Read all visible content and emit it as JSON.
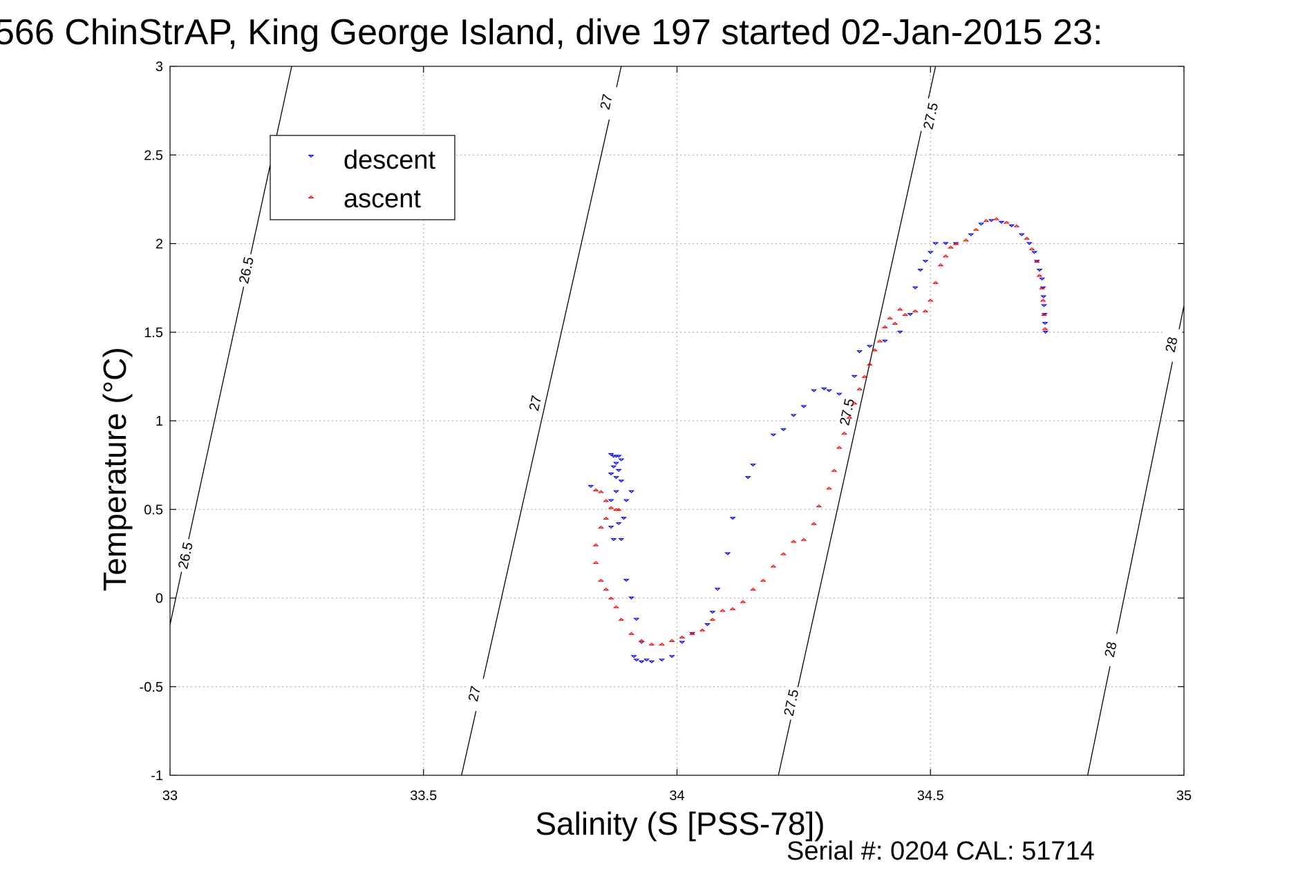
{
  "chart_data": {
    "type": "scatter",
    "title": "566 ChinStrAP, King George Island, dive 197 started 02-Jan-2015 23:",
    "xlabel": "Salinity (S [PSS-78])",
    "ylabel": "Temperature (°C)",
    "xlim": [
      33,
      35
    ],
    "ylim": [
      -1,
      3
    ],
    "x_ticks": [
      "33",
      "33.5",
      "34",
      "34.5",
      "35"
    ],
    "y_ticks": [
      "-1",
      "-0.5",
      "0",
      "0.5",
      "1",
      "1.5",
      "2",
      "2.5",
      "3"
    ],
    "grid": true,
    "legend_position": "top-left",
    "footer": "Serial #: 0204  CAL: 51714",
    "density_contours": [
      {
        "label": "26.5",
        "points": [
          [
            33.0,
            -0.15
          ],
          [
            33.24,
            3.0
          ]
        ],
        "label_positions": [
          [
            33.03,
            0.24
          ],
          [
            33.15,
            1.85
          ]
        ]
      },
      {
        "label": "27",
        "points": [
          [
            33.575,
            -1.0
          ],
          [
            33.89,
            3.0
          ]
        ],
        "label_positions": [
          [
            33.6,
            -0.54
          ],
          [
            33.72,
            1.1
          ],
          [
            33.86,
            2.8
          ]
        ]
      },
      {
        "label": "27.5",
        "points": [
          [
            34.2,
            -1.0
          ],
          [
            34.51,
            3.0
          ]
        ],
        "label_positions": [
          [
            34.225,
            -0.59
          ],
          [
            34.335,
            1.05
          ],
          [
            34.5,
            2.72
          ]
        ]
      },
      {
        "label": "28",
        "points": [
          [
            34.81,
            -1.0
          ],
          [
            35.0,
            1.65
          ]
        ],
        "label_positions": [
          [
            34.855,
            -0.29
          ],
          [
            34.975,
            1.43
          ]
        ]
      }
    ],
    "series": [
      {
        "name": "descent",
        "color": "#0000ff",
        "marker": "triangle-down",
        "points": [
          [
            33.87,
            0.81
          ],
          [
            33.875,
            0.8
          ],
          [
            33.88,
            0.8
          ],
          [
            33.885,
            0.8
          ],
          [
            33.89,
            0.78
          ],
          [
            33.88,
            0.76
          ],
          [
            33.875,
            0.74
          ],
          [
            33.885,
            0.72
          ],
          [
            33.87,
            0.7
          ],
          [
            33.88,
            0.68
          ],
          [
            33.89,
            0.66
          ],
          [
            33.88,
            0.6
          ],
          [
            33.87,
            0.55
          ],
          [
            33.9,
            0.55
          ],
          [
            33.895,
            0.45
          ],
          [
            33.885,
            0.42
          ],
          [
            33.875,
            0.33
          ],
          [
            33.89,
            0.33
          ],
          [
            33.87,
            0.4
          ],
          [
            33.83,
            0.63
          ],
          [
            33.91,
            0.6
          ],
          [
            33.9,
            0.1
          ],
          [
            33.91,
            0.0
          ],
          [
            33.92,
            -0.12
          ],
          [
            33.93,
            -0.25
          ],
          [
            33.915,
            -0.33
          ],
          [
            33.92,
            -0.35
          ],
          [
            33.93,
            -0.36
          ],
          [
            33.94,
            -0.35
          ],
          [
            33.95,
            -0.36
          ],
          [
            33.97,
            -0.35
          ],
          [
            33.99,
            -0.33
          ],
          [
            34.01,
            -0.25
          ],
          [
            34.03,
            -0.2
          ],
          [
            34.06,
            -0.15
          ],
          [
            34.07,
            -0.08
          ],
          [
            34.08,
            0.05
          ],
          [
            34.1,
            0.25
          ],
          [
            34.11,
            0.45
          ],
          [
            34.14,
            0.68
          ],
          [
            34.15,
            0.75
          ],
          [
            34.19,
            0.92
          ],
          [
            34.21,
            0.95
          ],
          [
            34.23,
            1.03
          ],
          [
            34.25,
            1.08
          ],
          [
            34.27,
            1.17
          ],
          [
            34.29,
            1.18
          ],
          [
            34.3,
            1.17
          ],
          [
            34.32,
            1.15
          ],
          [
            34.35,
            1.25
          ],
          [
            34.36,
            1.39
          ],
          [
            34.38,
            1.42
          ],
          [
            34.41,
            1.45
          ],
          [
            34.44,
            1.5
          ],
          [
            34.46,
            1.6
          ],
          [
            34.47,
            1.75
          ],
          [
            34.48,
            1.85
          ],
          [
            34.49,
            1.9
          ],
          [
            34.5,
            1.95
          ],
          [
            34.51,
            2.0
          ],
          [
            34.53,
            2.0
          ],
          [
            34.55,
            2.0
          ],
          [
            34.58,
            2.05
          ],
          [
            34.6,
            2.11
          ],
          [
            34.62,
            2.13
          ],
          [
            34.64,
            2.12
          ],
          [
            34.66,
            2.1
          ],
          [
            34.68,
            2.05
          ],
          [
            34.695,
            2.0
          ],
          [
            34.705,
            1.95
          ],
          [
            34.71,
            1.9
          ],
          [
            34.715,
            1.85
          ],
          [
            34.72,
            1.8
          ],
          [
            34.722,
            1.75
          ],
          [
            34.723,
            1.7
          ],
          [
            34.724,
            1.65
          ],
          [
            34.725,
            1.6
          ],
          [
            34.726,
            1.55
          ],
          [
            34.727,
            1.5
          ]
        ]
      },
      {
        "name": "ascent",
        "color": "#ff0000",
        "marker": "triangle-up",
        "points": [
          [
            33.84,
            0.61
          ],
          [
            33.85,
            0.6
          ],
          [
            33.86,
            0.55
          ],
          [
            33.87,
            0.51
          ],
          [
            33.88,
            0.5
          ],
          [
            33.885,
            0.5
          ],
          [
            33.86,
            0.45
          ],
          [
            33.85,
            0.4
          ],
          [
            33.84,
            0.3
          ],
          [
            33.84,
            0.2
          ],
          [
            33.85,
            0.1
          ],
          [
            33.86,
            0.05
          ],
          [
            33.87,
            0.0
          ],
          [
            33.88,
            -0.05
          ],
          [
            33.89,
            -0.12
          ],
          [
            33.91,
            -0.2
          ],
          [
            33.93,
            -0.24
          ],
          [
            33.95,
            -0.26
          ],
          [
            33.97,
            -0.26
          ],
          [
            33.99,
            -0.24
          ],
          [
            34.01,
            -0.22
          ],
          [
            34.03,
            -0.2
          ],
          [
            34.05,
            -0.18
          ],
          [
            34.07,
            -0.12
          ],
          [
            34.09,
            -0.07
          ],
          [
            34.11,
            -0.06
          ],
          [
            34.13,
            -0.02
          ],
          [
            34.15,
            0.05
          ],
          [
            34.17,
            0.1
          ],
          [
            34.19,
            0.18
          ],
          [
            34.21,
            0.25
          ],
          [
            34.23,
            0.32
          ],
          [
            34.25,
            0.33
          ],
          [
            34.27,
            0.42
          ],
          [
            34.28,
            0.52
          ],
          [
            34.3,
            0.62
          ],
          [
            34.31,
            0.72
          ],
          [
            34.32,
            0.85
          ],
          [
            34.33,
            0.93
          ],
          [
            34.34,
            1.02
          ],
          [
            34.35,
            1.1
          ],
          [
            34.36,
            1.18
          ],
          [
            34.37,
            1.25
          ],
          [
            34.38,
            1.32
          ],
          [
            34.39,
            1.4
          ],
          [
            34.4,
            1.45
          ],
          [
            34.41,
            1.53
          ],
          [
            34.42,
            1.58
          ],
          [
            34.43,
            1.55
          ],
          [
            34.44,
            1.63
          ],
          [
            34.45,
            1.6
          ],
          [
            34.47,
            1.62
          ],
          [
            34.49,
            1.62
          ],
          [
            34.5,
            1.68
          ],
          [
            34.51,
            1.78
          ],
          [
            34.52,
            1.88
          ],
          [
            34.53,
            1.93
          ],
          [
            34.54,
            1.98
          ],
          [
            34.55,
            2.0
          ],
          [
            34.57,
            2.02
          ],
          [
            34.59,
            2.08
          ],
          [
            34.61,
            2.13
          ],
          [
            34.63,
            2.14
          ],
          [
            34.65,
            2.12
          ],
          [
            34.67,
            2.1
          ],
          [
            34.69,
            2.03
          ],
          [
            34.7,
            1.97
          ],
          [
            34.71,
            1.9
          ],
          [
            34.715,
            1.82
          ],
          [
            34.72,
            1.75
          ],
          [
            34.722,
            1.68
          ],
          [
            34.724,
            1.6
          ],
          [
            34.726,
            1.52
          ]
        ]
      }
    ]
  }
}
